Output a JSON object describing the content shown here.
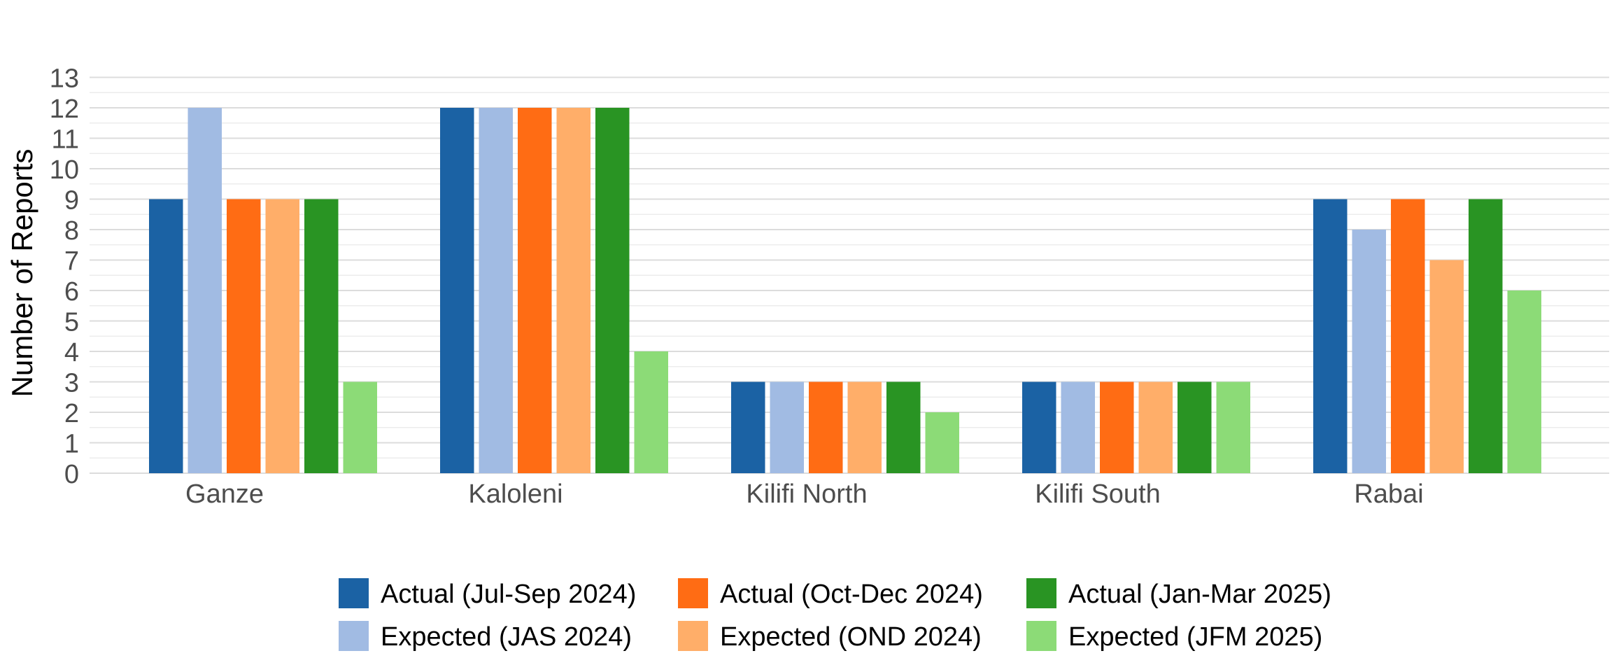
{
  "chart_data": {
    "type": "bar",
    "title": "",
    "xlabel": "",
    "ylabel": "Number of Reports",
    "ylim": [
      0,
      13
    ],
    "yticks": [
      0,
      1,
      2,
      3,
      4,
      5,
      6,
      7,
      8,
      9,
      10,
      11,
      12,
      13
    ],
    "grid": true,
    "legend_position": "bottom",
    "categories": [
      "Ganze",
      "Kaloleni",
      "Kilifi North",
      "Kilifi South",
      "Rabai"
    ],
    "series": [
      {
        "name": "Actual (Jul-Sep 2024)",
        "color": "#1b62a4",
        "values": [
          9,
          12,
          3,
          3,
          9
        ]
      },
      {
        "name": "Expected (JAS 2024)",
        "color": "#a1bbe3",
        "values": [
          12,
          12,
          3,
          3,
          8
        ]
      },
      {
        "name": "Actual (Oct-Dec 2024)",
        "color": "#ff6c14",
        "values": [
          9,
          12,
          3,
          3,
          9
        ]
      },
      {
        "name": "Expected (OND 2024)",
        "color": "#ffae69",
        "values": [
          9,
          12,
          3,
          3,
          7
        ]
      },
      {
        "name": "Actual (Jan-Mar 2025)",
        "color": "#299423",
        "values": [
          9,
          12,
          3,
          3,
          9
        ]
      },
      {
        "name": "Expected (JFM 2025)",
        "color": "#8cdb77",
        "values": [
          3,
          4,
          2,
          3,
          6
        ]
      }
    ]
  }
}
